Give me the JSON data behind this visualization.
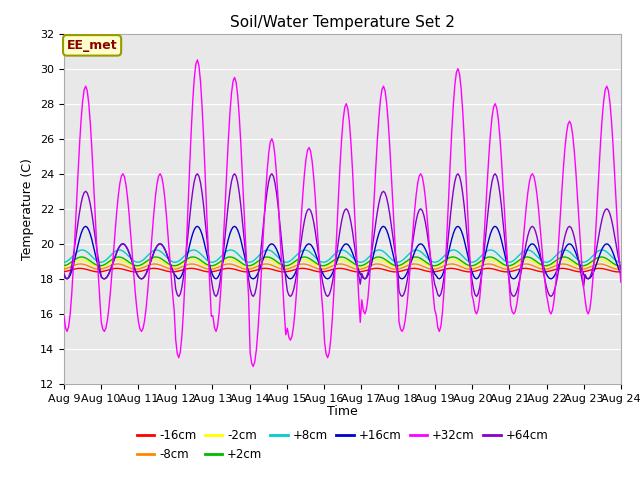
{
  "title": "Soil/Water Temperature Set 2",
  "xlabel": "Time",
  "ylabel": "Temperature (C)",
  "ylim": [
    12,
    32
  ],
  "yticks": [
    12,
    14,
    16,
    18,
    20,
    22,
    24,
    26,
    28,
    30,
    32
  ],
  "bg_color": "#e8e8e8",
  "series": [
    {
      "label": "-16cm",
      "color": "#ff0000"
    },
    {
      "label": "-8cm",
      "color": "#ff8800"
    },
    {
      "label": "-2cm",
      "color": "#ffff00"
    },
    {
      "label": "+2cm",
      "color": "#00bb00"
    },
    {
      "label": "+8cm",
      "color": "#00cccc"
    },
    {
      "label": "+16cm",
      "color": "#0000cc"
    },
    {
      "label": "+32cm",
      "color": "#ff00ff"
    },
    {
      "label": "+64cm",
      "color": "#8800cc"
    }
  ],
  "linewidth": 1.0,
  "annotation_text": "EE_met"
}
